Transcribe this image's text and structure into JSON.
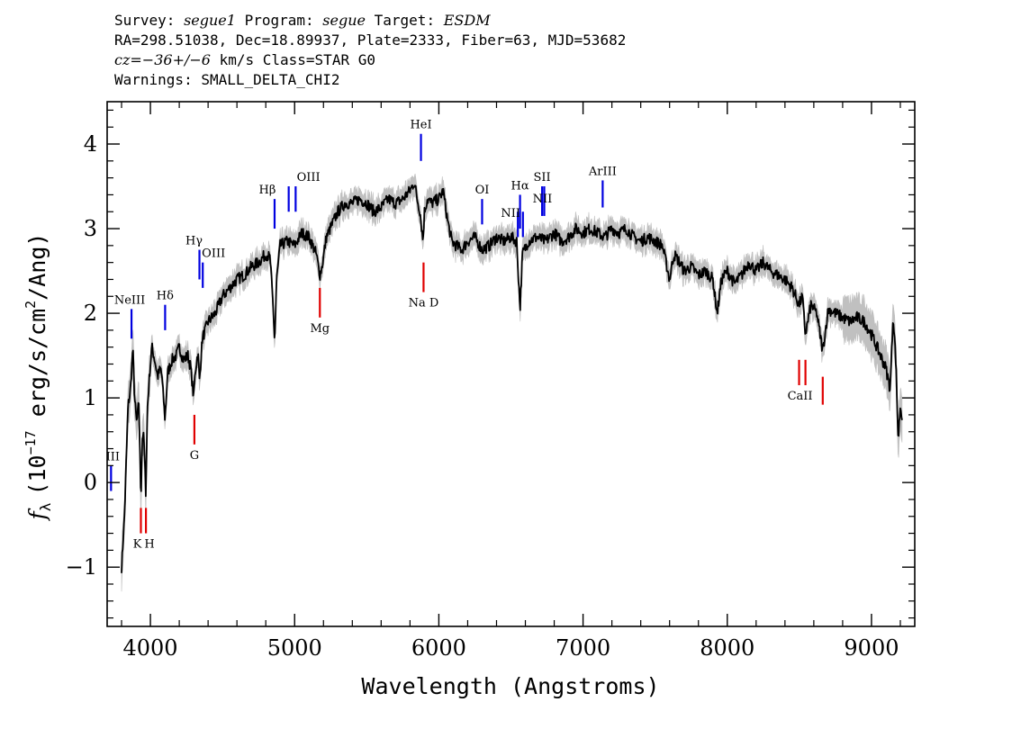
{
  "header": {
    "survey_label": "Survey:",
    "survey": "segue1",
    "program_label": "Program:",
    "program": "segue",
    "target_label": "Target:",
    "target": "ESDM",
    "line2": "RA=298.51038, Dec=18.89937, Plate=2333, Fiber=63, MJD=53682",
    "cz_label": "cz=",
    "cz_value": "−36+/−6",
    "cz_rest": " km/s Class=STAR G0",
    "warnings": "Warnings: SMALL_DELTA_CHI2"
  },
  "chart_data": {
    "type": "line",
    "title": "",
    "xlabel": "Wavelength (Angstroms)",
    "ylabel_prefix": "f",
    "ylabel_sub": "λ",
    "ylabel_main": "(10",
    "ylabel_exp": "−17",
    "ylabel_rest": " erg/s/cm",
    "ylabel_exp2": "2",
    "ylabel_end": "/Ang)",
    "xlim": [
      3700,
      9300
    ],
    "ylim": [
      -1.7,
      4.5
    ],
    "xticks": [
      4000,
      5000,
      6000,
      7000,
      8000,
      9000
    ],
    "xtick_labels": [
      "4000",
      "5000",
      "6000",
      "7000",
      "8000",
      "9000"
    ],
    "yticks": [
      -1,
      0,
      1,
      2,
      3,
      4
    ],
    "ytick_labels": [
      "−1",
      "0",
      "1",
      "2",
      "3",
      "4"
    ],
    "series_color": "#000000",
    "error_color": "#c0c0c0",
    "spectrum_anchors": [
      [
        3800,
        -1.0
      ],
      [
        3820,
        -0.4
      ],
      [
        3845,
        0.9
      ],
      [
        3862,
        1.1
      ],
      [
        3878,
        1.6
      ],
      [
        3890,
        1.0
      ],
      [
        3905,
        0.7
      ],
      [
        3920,
        0.95
      ],
      [
        3934,
        -0.2
      ],
      [
        3945,
        0.6
      ],
      [
        3955,
        0.5
      ],
      [
        3968,
        -0.1
      ],
      [
        3980,
        0.9
      ],
      [
        3995,
        1.3
      ],
      [
        4010,
        1.6
      ],
      [
        4030,
        1.45
      ],
      [
        4050,
        1.25
      ],
      [
        4070,
        1.35
      ],
      [
        4080,
        1.25
      ],
      [
        4101,
        0.75
      ],
      [
        4120,
        1.3
      ],
      [
        4150,
        1.45
      ],
      [
        4180,
        1.5
      ],
      [
        4200,
        1.6
      ],
      [
        4230,
        1.45
      ],
      [
        4260,
        1.5
      ],
      [
        4280,
        1.35
      ],
      [
        4300,
        1.0
      ],
      [
        4310,
        1.3
      ],
      [
        4330,
        1.55
      ],
      [
        4340,
        1.2
      ],
      [
        4360,
        1.7
      ],
      [
        4400,
        1.9
      ],
      [
        4450,
        2.0
      ],
      [
        4500,
        2.2
      ],
      [
        4550,
        2.3
      ],
      [
        4600,
        2.4
      ],
      [
        4650,
        2.45
      ],
      [
        4700,
        2.55
      ],
      [
        4750,
        2.6
      ],
      [
        4800,
        2.7
      ],
      [
        4830,
        2.65
      ],
      [
        4850,
        2.1
      ],
      [
        4862,
        1.65
      ],
      [
        4875,
        2.4
      ],
      [
        4900,
        2.8
      ],
      [
        4950,
        2.85
      ],
      [
        5000,
        2.8
      ],
      [
        5050,
        2.95
      ],
      [
        5100,
        2.9
      ],
      [
        5150,
        2.7
      ],
      [
        5175,
        2.45
      ],
      [
        5190,
        2.55
      ],
      [
        5220,
        2.9
      ],
      [
        5260,
        3.05
      ],
      [
        5300,
        3.2
      ],
      [
        5350,
        3.3
      ],
      [
        5400,
        3.3
      ],
      [
        5450,
        3.35
      ],
      [
        5500,
        3.3
      ],
      [
        5550,
        3.2
      ],
      [
        5600,
        3.25
      ],
      [
        5650,
        3.35
      ],
      [
        5700,
        3.3
      ],
      [
        5750,
        3.35
      ],
      [
        5800,
        3.45
      ],
      [
        5830,
        3.55
      ],
      [
        5850,
        3.35
      ],
      [
        5870,
        3.2
      ],
      [
        5890,
        2.85
      ],
      [
        5900,
        3.2
      ],
      [
        5920,
        3.35
      ],
      [
        5950,
        3.3
      ],
      [
        6000,
        3.35
      ],
      [
        6030,
        3.45
      ],
      [
        6060,
        3.1
      ],
      [
        6090,
        2.85
      ],
      [
        6120,
        2.8
      ],
      [
        6160,
        2.75
      ],
      [
        6200,
        2.85
      ],
      [
        6250,
        2.9
      ],
      [
        6300,
        2.75
      ],
      [
        6350,
        2.8
      ],
      [
        6400,
        2.9
      ],
      [
        6450,
        2.85
      ],
      [
        6500,
        2.9
      ],
      [
        6540,
        2.85
      ],
      [
        6563,
        2.05
      ],
      [
        6580,
        2.7
      ],
      [
        6620,
        2.85
      ],
      [
        6680,
        2.9
      ],
      [
        6740,
        2.85
      ],
      [
        6800,
        2.95
      ],
      [
        6850,
        2.85
      ],
      [
        6900,
        2.9
      ],
      [
        6950,
        3.0
      ],
      [
        7000,
        2.95
      ],
      [
        7050,
        3.0
      ],
      [
        7100,
        2.95
      ],
      [
        7150,
        2.9
      ],
      [
        7200,
        3.0
      ],
      [
        7250,
        2.95
      ],
      [
        7300,
        3.0
      ],
      [
        7350,
        2.9
      ],
      [
        7400,
        2.85
      ],
      [
        7450,
        2.9
      ],
      [
        7500,
        2.85
      ],
      [
        7550,
        2.8
      ],
      [
        7600,
        2.4
      ],
      [
        7630,
        2.7
      ],
      [
        7670,
        2.6
      ],
      [
        7700,
        2.5
      ],
      [
        7750,
        2.55
      ],
      [
        7800,
        2.45
      ],
      [
        7850,
        2.5
      ],
      [
        7900,
        2.4
      ],
      [
        7930,
        2.0
      ],
      [
        7960,
        2.4
      ],
      [
        8000,
        2.5
      ],
      [
        8050,
        2.35
      ],
      [
        8100,
        2.45
      ],
      [
        8150,
        2.6
      ],
      [
        8200,
        2.5
      ],
      [
        8250,
        2.6
      ],
      [
        8300,
        2.5
      ],
      [
        8350,
        2.45
      ],
      [
        8400,
        2.4
      ],
      [
        8450,
        2.3
      ],
      [
        8498,
        2.1
      ],
      [
        8520,
        2.2
      ],
      [
        8542,
        1.75
      ],
      [
        8580,
        2.1
      ],
      [
        8620,
        2.0
      ],
      [
        8662,
        1.55
      ],
      [
        8700,
        2.05
      ],
      [
        8750,
        2.0
      ],
      [
        8800,
        1.95
      ],
      [
        8850,
        1.9
      ],
      [
        8900,
        1.95
      ],
      [
        8950,
        1.9
      ],
      [
        9000,
        1.75
      ],
      [
        9050,
        1.55
      ],
      [
        9100,
        1.35
      ],
      [
        9130,
        1.1
      ],
      [
        9150,
        2.0
      ],
      [
        9170,
        1.4
      ],
      [
        9185,
        0.5
      ],
      [
        9200,
        0.9
      ],
      [
        9215,
        0.75
      ]
    ],
    "lines": [
      {
        "label": "NeIII",
        "x": 3869,
        "color": "blue",
        "y_top": 2.05,
        "y_bot": 1.7,
        "lbl_side": "above"
      },
      {
        "label": "Hδ",
        "x": 4102,
        "color": "blue",
        "y_top": 2.1,
        "y_bot": 1.8,
        "lbl_side": "above"
      },
      {
        "label": "Hγ",
        "x": 4340,
        "color": "blue",
        "y_top": 2.75,
        "y_bot": 2.4,
        "lbl_side": "above"
      },
      {
        "label": "OIII",
        "x": 4363,
        "color": "blue",
        "y_top": 2.6,
        "y_bot": 2.3,
        "lbl_side": "above"
      },
      {
        "label": "Hβ",
        "x": 4861,
        "color": "blue",
        "y_top": 3.35,
        "y_bot": 3.0,
        "lbl_side": "above"
      },
      {
        "label": "OIII",
        "x": 4959,
        "color": "blue",
        "y_top": 3.5,
        "y_bot": 3.2,
        "lbl_side": "above"
      },
      {
        "label": "",
        "x": 5007,
        "color": "blue",
        "y_top": 3.5,
        "y_bot": 3.2,
        "lbl_side": "none"
      },
      {
        "label": "HeI",
        "x": 5876,
        "color": "blue",
        "y_top": 4.12,
        "y_bot": 3.8,
        "lbl_side": "above"
      },
      {
        "label": "OI",
        "x": 6300,
        "color": "blue",
        "y_top": 3.35,
        "y_bot": 3.05,
        "lbl_side": "above"
      },
      {
        "label": "NII",
        "x": 6548,
        "color": "blue",
        "y_top": 3.2,
        "y_bot": 2.9,
        "lbl_side": "leftabove"
      },
      {
        "label": "Hα",
        "x": 6563,
        "color": "blue",
        "y_top": 3.4,
        "y_bot": 3.0,
        "lbl_side": "above"
      },
      {
        "label": "NII",
        "x": 6583,
        "color": "blue",
        "y_top": 3.2,
        "y_bot": 2.9,
        "lbl_side": "none"
      },
      {
        "label": "SII",
        "x": 6716,
        "color": "blue",
        "y_top": 3.5,
        "y_bot": 3.15,
        "lbl_side": "above"
      },
      {
        "label": "NII",
        "x": 6731,
        "color": "blue",
        "y_top": 3.5,
        "y_bot": 3.15,
        "lbl_side": "nii"
      },
      {
        "label": "ArIII",
        "x": 7136,
        "color": "blue",
        "y_top": 3.57,
        "y_bot": 3.25,
        "lbl_side": "above"
      },
      {
        "label": "III",
        "x": 3727,
        "color": "blue",
        "y_top": 0.2,
        "y_bot": -0.1,
        "lbl_side": "above"
      },
      {
        "label": "K",
        "x": 3934,
        "color": "red",
        "y_top": -0.3,
        "y_bot": -0.6,
        "lbl_side": "below"
      },
      {
        "label": "H",
        "x": 3969,
        "color": "red",
        "y_top": -0.3,
        "y_bot": -0.6,
        "lbl_side": "below"
      },
      {
        "label": "G",
        "x": 4305,
        "color": "red",
        "y_top": 0.8,
        "y_bot": 0.45,
        "lbl_side": "below"
      },
      {
        "label": "Mg",
        "x": 5175,
        "color": "red",
        "y_top": 2.3,
        "y_bot": 1.95,
        "lbl_side": "below"
      },
      {
        "label": "Na D",
        "x": 5894,
        "color": "red",
        "y_top": 2.6,
        "y_bot": 2.25,
        "lbl_side": "below"
      },
      {
        "label": "",
        "x": 8498,
        "color": "red",
        "y_top": 1.45,
        "y_bot": 1.15,
        "lbl_side": "none"
      },
      {
        "label": "CaII",
        "x": 8542,
        "color": "red",
        "y_top": 1.45,
        "y_bot": 1.15,
        "lbl_side": "below"
      },
      {
        "label": "",
        "x": 8662,
        "color": "red",
        "y_top": 1.25,
        "y_bot": 0.92,
        "lbl_side": "none"
      }
    ]
  }
}
